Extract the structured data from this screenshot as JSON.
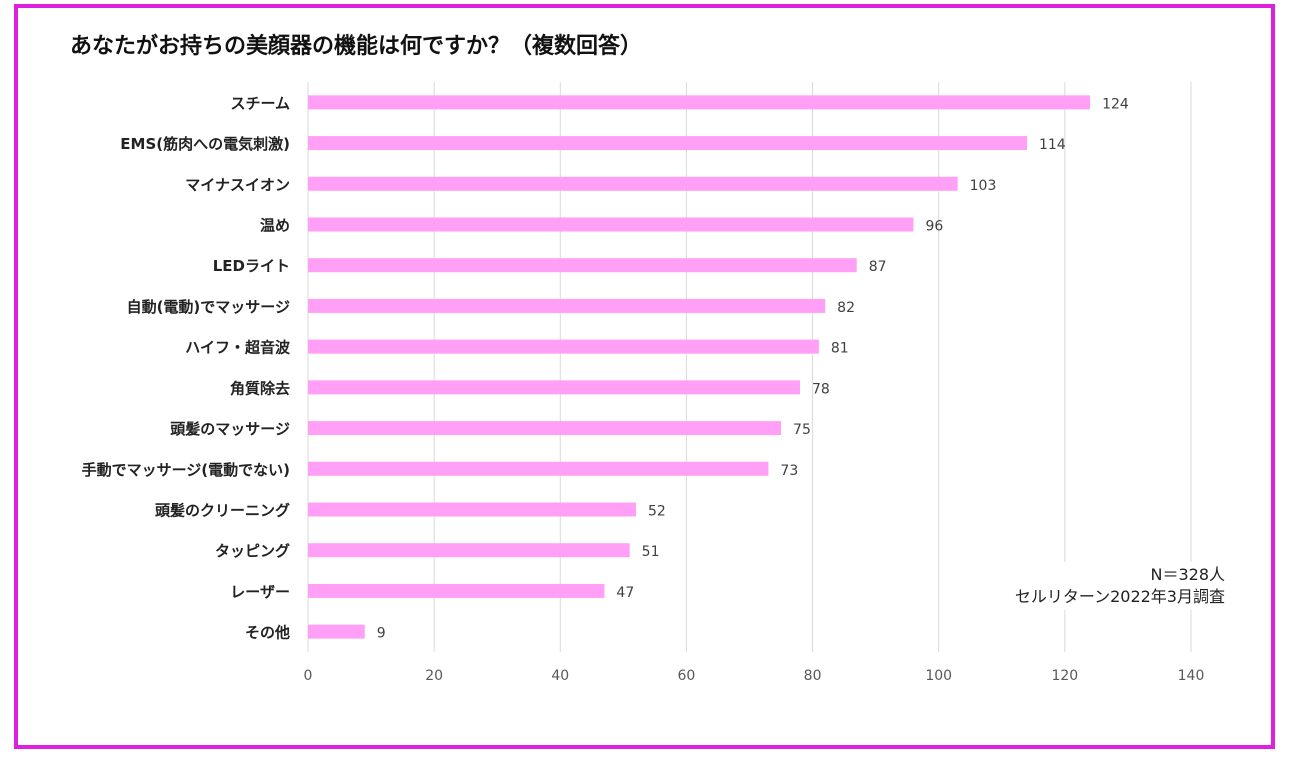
{
  "title": "あなたがお持ちの美顔器の機能は何ですか？（複数回答）",
  "note": {
    "n": "N＝328人",
    "source": "セルリターン2022年3月調査"
  },
  "colors": {
    "bar": "#ff9ff5",
    "frame": "#e020e0",
    "grid": "#d9d9d9"
  },
  "chart_data": {
    "type": "bar",
    "orientation": "horizontal",
    "categories": [
      "スチーム",
      "EMS(筋肉への電気刺激)",
      "マイナスイオン",
      "温め",
      "LEDライト",
      "自動(電動)でマッサージ",
      "ハイフ・超音波",
      "角質除去",
      "頭髪のマッサージ",
      "手動でマッサージ(電動でない)",
      "頭髪のクリーニング",
      "タッピング",
      "レーザー",
      "その他"
    ],
    "values": [
      124,
      114,
      103,
      96,
      87,
      82,
      81,
      78,
      75,
      73,
      52,
      51,
      47,
      9
    ],
    "xlim": [
      0,
      140
    ],
    "xticks": [
      0,
      20,
      40,
      60,
      80,
      100,
      120,
      140
    ],
    "grid": true,
    "legend": false
  }
}
